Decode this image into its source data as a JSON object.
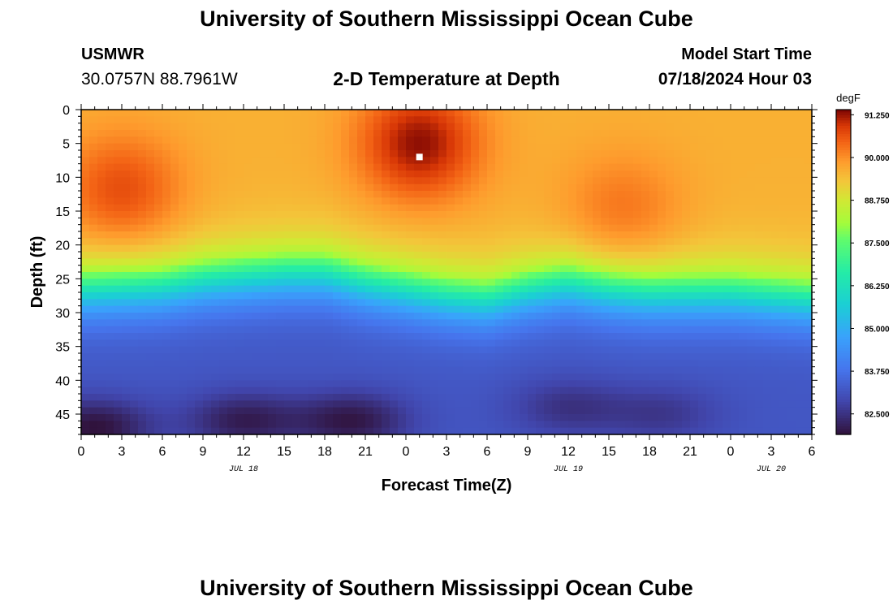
{
  "header": {
    "title": "University of Southern Mississippi Ocean Cube",
    "station": "USMWR",
    "coords": "30.0757N  88.7961W",
    "subtitle": "2-D Temperature at Depth",
    "model_start_label": "Model Start Time",
    "model_start_value": "07/18/2024 Hour 03"
  },
  "footer": {
    "title": "University of Southern Mississippi Ocean Cube"
  },
  "chart_data": {
    "type": "heatmap",
    "title": "2-D Temperature at Depth",
    "xlabel": "Forecast Time(Z)",
    "ylabel": "Depth (ft)",
    "x_hours_range": [
      0,
      54
    ],
    "x_ticks": [
      {
        "h": 0,
        "label": "0"
      },
      {
        "h": 3,
        "label": "3"
      },
      {
        "h": 6,
        "label": "6"
      },
      {
        "h": 9,
        "label": "9"
      },
      {
        "h": 12,
        "label": "12"
      },
      {
        "h": 15,
        "label": "15"
      },
      {
        "h": 18,
        "label": "18"
      },
      {
        "h": 21,
        "label": "21"
      },
      {
        "h": 24,
        "label": "0"
      },
      {
        "h": 27,
        "label": "3"
      },
      {
        "h": 30,
        "label": "6"
      },
      {
        "h": 33,
        "label": "9"
      },
      {
        "h": 36,
        "label": "12"
      },
      {
        "h": 39,
        "label": "15"
      },
      {
        "h": 42,
        "label": "18"
      },
      {
        "h": 45,
        "label": "21"
      },
      {
        "h": 48,
        "label": "0"
      },
      {
        "h": 51,
        "label": "3"
      },
      {
        "h": 54,
        "label": "6"
      }
    ],
    "date_labels": [
      {
        "h": 12,
        "label": "JUL 18"
      },
      {
        "h": 36,
        "label": "JUL 19"
      },
      {
        "h": 51,
        "label": "JUL 20"
      }
    ],
    "y_range": [
      0,
      48
    ],
    "y_ticks": [
      0,
      5,
      10,
      15,
      20,
      25,
      30,
      35,
      40,
      45
    ],
    "colorbar": {
      "unit": "degF",
      "range": [
        81.9,
        91.4
      ],
      "tick_labels": [
        "91.250",
        "90.000",
        "88.750",
        "87.500",
        "86.250",
        "85.000",
        "83.750",
        "82.500"
      ],
      "tick_values": [
        91.25,
        90.0,
        88.75,
        87.5,
        86.25,
        85.0,
        83.75,
        82.5
      ]
    },
    "thermocline_depth_ft": [
      {
        "h": 0,
        "d": 27.5
      },
      {
        "h": 6,
        "d": 27
      },
      {
        "h": 9,
        "d": 26
      },
      {
        "h": 12,
        "d": 25.5
      },
      {
        "h": 15,
        "d": 25
      },
      {
        "h": 18,
        "d": 25
      },
      {
        "h": 21,
        "d": 26.5
      },
      {
        "h": 24,
        "d": 27.5
      },
      {
        "h": 27,
        "d": 28.5
      },
      {
        "h": 30,
        "d": 29
      },
      {
        "h": 33,
        "d": 27.5
      },
      {
        "h": 36,
        "d": 26.5
      },
      {
        "h": 39,
        "d": 27.5
      },
      {
        "h": 42,
        "d": 28
      },
      {
        "h": 45,
        "d": 28
      },
      {
        "h": 48,
        "d": 28
      },
      {
        "h": 51,
        "d": 28.5
      },
      {
        "h": 54,
        "d": 29
      }
    ],
    "surface_hotspots": [
      {
        "h": 3,
        "d": 12,
        "temp": 90.7
      },
      {
        "h": 25,
        "d": 5,
        "temp": 91.3
      },
      {
        "h": 40,
        "d": 15,
        "temp": 90.3
      }
    ],
    "deep_coldspots": [
      {
        "h": 1,
        "d": 47,
        "temp": 81.9
      },
      {
        "h": 12,
        "d": 46,
        "temp": 82.1
      },
      {
        "h": 20,
        "d": 46,
        "temp": 82.0
      },
      {
        "h": 36,
        "d": 44,
        "temp": 82.5
      },
      {
        "h": 43,
        "d": 45,
        "temp": 82.6
      }
    ],
    "marker": {
      "h": 25,
      "d": 7
    }
  }
}
